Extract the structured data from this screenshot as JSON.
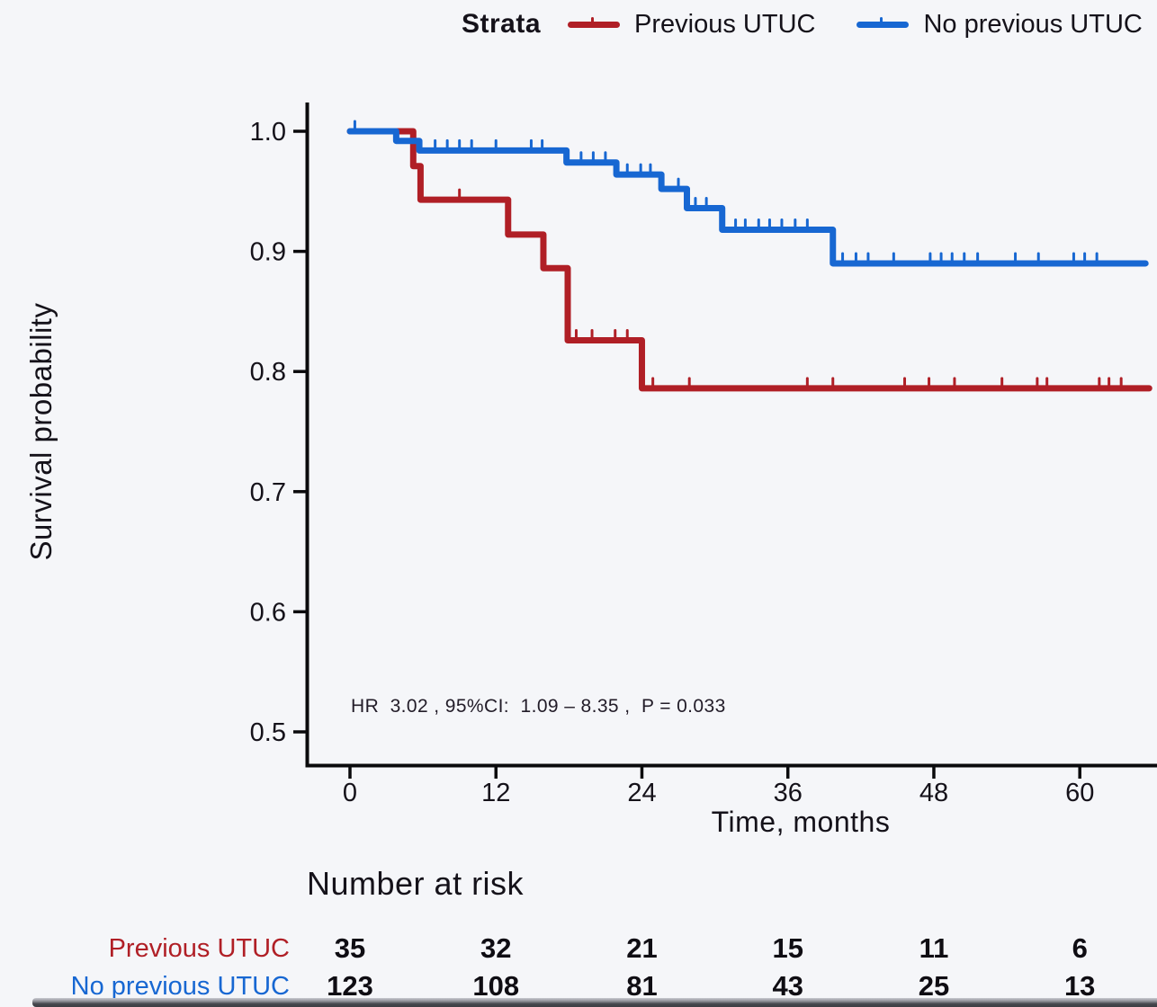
{
  "legend": {
    "title": "Strata",
    "items": [
      {
        "label": "Previous UTUC",
        "color": "#b01f26"
      },
      {
        "label": "No previous UTUC",
        "color": "#1767d2"
      }
    ]
  },
  "chart_data": {
    "type": "line",
    "subtype": "kaplan_meier_step",
    "title": "",
    "xlabel": "Time, months",
    "ylabel": "Survival probability",
    "xlim": [
      0,
      66
    ],
    "ylim": [
      0.47,
      1.02
    ],
    "grid": false,
    "legend_position": "top",
    "xticks": [
      0,
      12,
      24,
      36,
      48,
      60
    ],
    "yticks": [
      1.0,
      0.9,
      0.8,
      0.7,
      0.6,
      0.5
    ],
    "ytick_labels": [
      "1.0",
      "0.9",
      "0.8",
      "0.7",
      "0.6",
      "0.5"
    ],
    "annotation": "HR  3.02 , 95%CI:  1.09 – 8.35 ,  P = 0.033",
    "series": [
      {
        "name": "Previous UTUC",
        "color": "#b01f26",
        "steps": [
          [
            0,
            1.0
          ],
          [
            5.2,
            0.971
          ],
          [
            5.8,
            0.943
          ],
          [
            13,
            0.914
          ],
          [
            15.9,
            0.886
          ],
          [
            17.9,
            0.826
          ],
          [
            24,
            0.786
          ]
        ],
        "end_month": 65.7,
        "censor_marks": [
          [
            9,
            0.943
          ],
          [
            18.6,
            0.826
          ],
          [
            19.9,
            0.826
          ],
          [
            21.8,
            0.826
          ],
          [
            22.8,
            0.826
          ],
          [
            24.9,
            0.786
          ],
          [
            27.9,
            0.786
          ],
          [
            37.6,
            0.786
          ],
          [
            39.7,
            0.786
          ],
          [
            45.6,
            0.786
          ],
          [
            47.6,
            0.786
          ],
          [
            49.7,
            0.786
          ],
          [
            53.6,
            0.786
          ],
          [
            56.5,
            0.786
          ],
          [
            57.3,
            0.786
          ],
          [
            61.6,
            0.786
          ],
          [
            62.4,
            0.786
          ],
          [
            63.4,
            0.786
          ]
        ]
      },
      {
        "name": "No previous UTUC",
        "color": "#1767d2",
        "steps": [
          [
            0,
            1.0
          ],
          [
            3.8,
            0.992
          ],
          [
            5.7,
            0.984
          ],
          [
            17.8,
            0.974
          ],
          [
            21.9,
            0.964
          ],
          [
            25.6,
            0.952
          ],
          [
            27.7,
            0.936
          ],
          [
            30.6,
            0.918
          ],
          [
            39.7,
            0.89
          ]
        ],
        "end_month": 65.4,
        "censor_marks": [
          [
            0.4,
            1.0
          ],
          [
            7,
            0.984
          ],
          [
            8,
            0.984
          ],
          [
            9,
            0.984
          ],
          [
            10,
            0.984
          ],
          [
            12,
            0.984
          ],
          [
            14.9,
            0.984
          ],
          [
            15.8,
            0.984
          ],
          [
            19,
            0.974
          ],
          [
            20,
            0.974
          ],
          [
            21,
            0.974
          ],
          [
            22.8,
            0.964
          ],
          [
            23.9,
            0.964
          ],
          [
            24.7,
            0.964
          ],
          [
            27,
            0.952
          ],
          [
            28.4,
            0.936
          ],
          [
            29.3,
            0.936
          ],
          [
            31.7,
            0.918
          ],
          [
            32.5,
            0.918
          ],
          [
            33.6,
            0.918
          ],
          [
            34.5,
            0.918
          ],
          [
            35.5,
            0.918
          ],
          [
            36.6,
            0.918
          ],
          [
            37.6,
            0.918
          ],
          [
            40.5,
            0.89
          ],
          [
            41.6,
            0.89
          ],
          [
            42.6,
            0.89
          ],
          [
            44.7,
            0.89
          ],
          [
            47.7,
            0.89
          ],
          [
            48.6,
            0.89
          ],
          [
            49.5,
            0.89
          ],
          [
            50.5,
            0.89
          ],
          [
            51.6,
            0.89
          ],
          [
            54.7,
            0.89
          ],
          [
            56.6,
            0.89
          ],
          [
            59.5,
            0.89
          ],
          [
            60.4,
            0.89
          ],
          [
            61.4,
            0.89
          ]
        ]
      }
    ]
  },
  "risk_table": {
    "title": "Number at risk",
    "time_points": [
      0,
      12,
      24,
      36,
      48,
      60
    ],
    "rows": [
      {
        "label": "Previous UTUC",
        "color": "#b01f26",
        "values": [
          "35",
          "32",
          "21",
          "15",
          "11",
          "6"
        ]
      },
      {
        "label": "No previous UTUC",
        "color": "#1767d2",
        "values": [
          "123",
          "108",
          "81",
          "43",
          "25",
          "13"
        ]
      }
    ]
  }
}
